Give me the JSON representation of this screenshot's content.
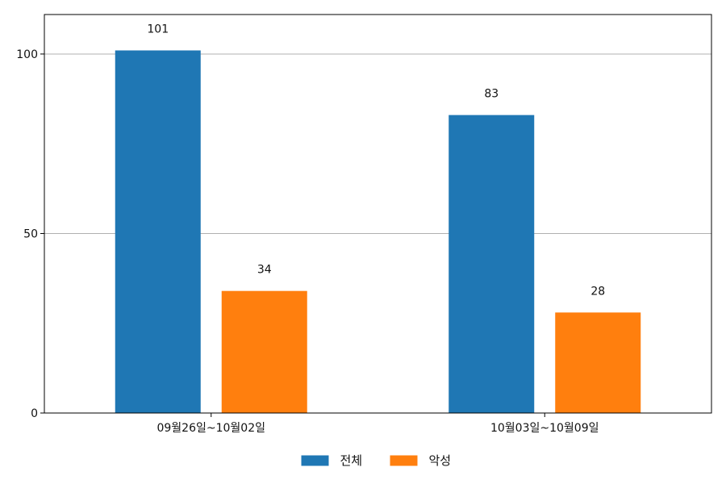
{
  "chart_data": {
    "type": "bar",
    "categories": [
      "09월26일~10월02일",
      "10월03일~10월09일"
    ],
    "series": [
      {
        "name": "전체",
        "values": [
          101,
          83
        ],
        "color": "#1f77b4"
      },
      {
        "name": "악성",
        "values": [
          34,
          28
        ],
        "color": "#ff7f0e"
      }
    ],
    "ylim": [
      0,
      111
    ],
    "yticks": [
      0,
      50,
      100
    ],
    "grid": "horizontal",
    "legend_position": "bottom-center",
    "data_labels": true
  }
}
